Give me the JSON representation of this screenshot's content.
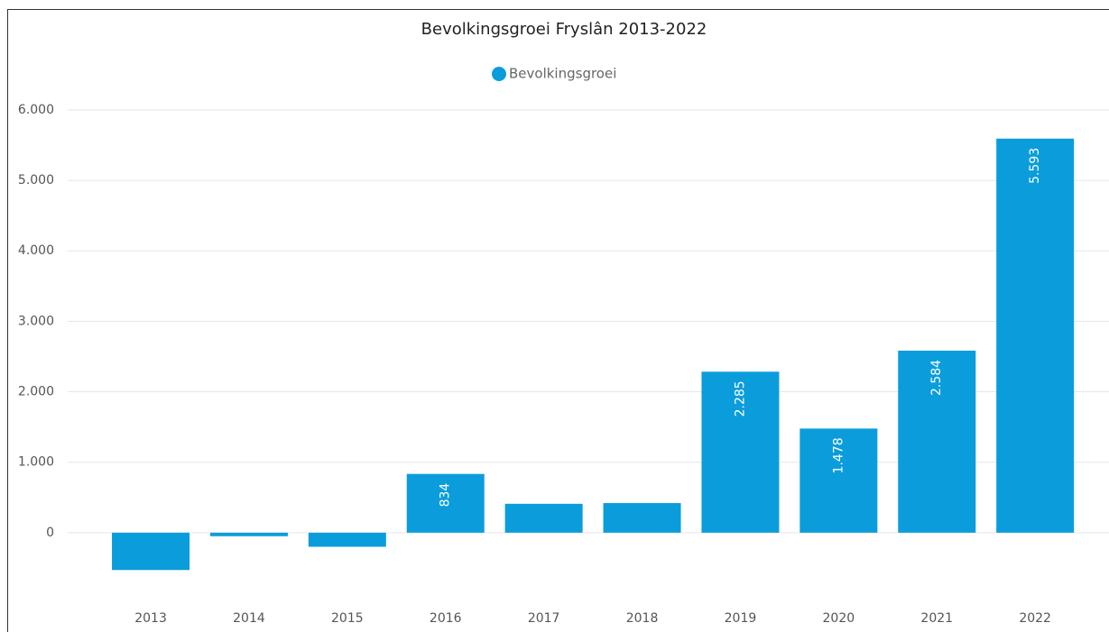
{
  "chart_data": {
    "type": "bar",
    "title": "Bevolkingsgroei Fryslân 2013-2022",
    "categories": [
      "2013",
      "2014",
      "2015",
      "2016",
      "2017",
      "2018",
      "2019",
      "2020",
      "2021",
      "2022"
    ],
    "series": [
      {
        "name": "Bevolkingsgroei",
        "color": "#0b9ddb",
        "values": [
          -530,
          -50,
          -200,
          834,
          410,
          420,
          2285,
          1478,
          2584,
          5593
        ],
        "value_labels": [
          null,
          null,
          null,
          "834",
          null,
          null,
          "2.285",
          "1.478",
          "2.584",
          "5.593"
        ]
      }
    ],
    "ylim": [
      -1000,
      6300
    ],
    "yticks": [
      0,
      {
        "value": 1000,
        "label": "1.000"
      },
      {
        "value": 2000,
        "label": "2.000"
      },
      {
        "value": 3000,
        "label": "3.000"
      },
      {
        "value": 4000,
        "label": "4.000"
      },
      {
        "value": 5000,
        "label": "5.000"
      },
      {
        "value": 6000,
        "label": "6.000"
      }
    ],
    "grid": true,
    "legend": "top"
  }
}
